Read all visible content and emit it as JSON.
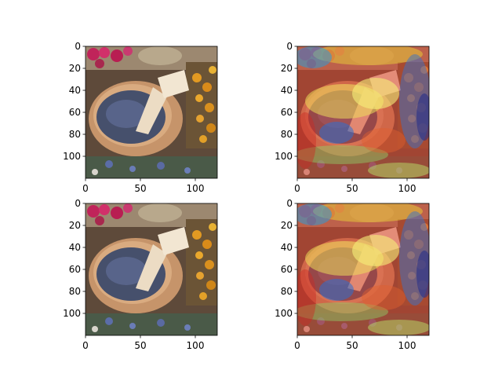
{
  "figure": {
    "background": "#ffffff"
  },
  "chart_data": [
    {
      "type": "image",
      "panel": "top-left",
      "content": "photo",
      "title": "",
      "xlabel": "",
      "ylabel": "",
      "xlim": [
        0,
        120
      ],
      "ylim": [
        120,
        0
      ],
      "xticks": [
        0,
        50,
        100
      ],
      "yticks": [
        0,
        20,
        40,
        60,
        80,
        100
      ]
    },
    {
      "type": "heatmap",
      "panel": "top-right",
      "content": "photo-with-heatmap-overlay",
      "colormap": "jet",
      "title": "",
      "xlabel": "",
      "ylabel": "",
      "xlim": [
        0,
        120
      ],
      "ylim": [
        120,
        0
      ],
      "xticks": [
        0,
        50,
        100
      ],
      "yticks": [
        0,
        20,
        40,
        60,
        80,
        100
      ]
    },
    {
      "type": "image",
      "panel": "bottom-left",
      "content": "photo",
      "title": "",
      "xlabel": "",
      "ylabel": "",
      "xlim": [
        0,
        120
      ],
      "ylim": [
        120,
        0
      ],
      "xticks": [
        0,
        50,
        100
      ],
      "yticks": [
        0,
        20,
        40,
        60,
        80,
        100
      ]
    },
    {
      "type": "heatmap",
      "panel": "bottom-right",
      "content": "photo-with-heatmap-overlay",
      "colormap": "jet",
      "title": "",
      "xlabel": "",
      "ylabel": "",
      "xlim": [
        0,
        120
      ],
      "ylim": [
        120,
        0
      ],
      "xticks": [
        0,
        50,
        100
      ],
      "yticks": [
        0,
        20,
        40,
        60,
        80,
        100
      ]
    }
  ]
}
